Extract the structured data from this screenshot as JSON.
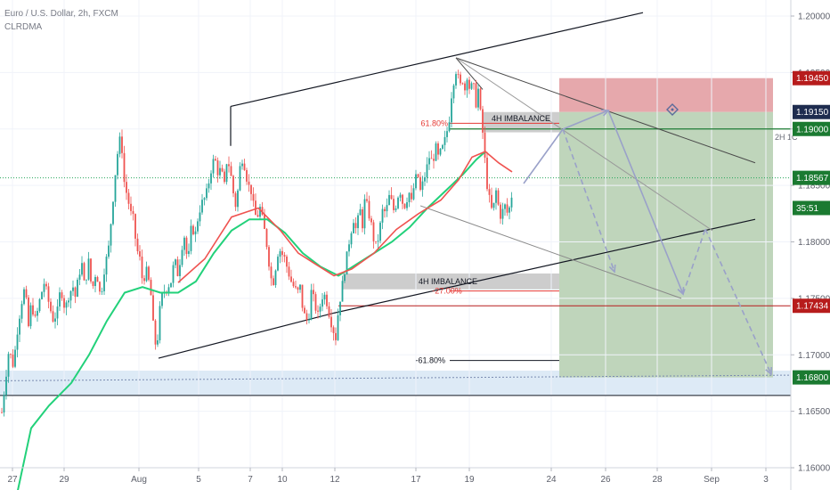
{
  "header": {
    "symbol": "Euro / U.S. Dollar, 2h, FXCM",
    "indicator": "CLRDMA"
  },
  "colors": {
    "up": "#26a69a",
    "down": "#ef5350",
    "ma_fast": "#ef5350",
    "ma_slow": "#22d17a",
    "green_tag": "#1b7a31",
    "red_tag": "#b71c1c",
    "navy_tag": "#1e2c4f",
    "stop_zone": "#e2999e",
    "target_zone": "#bcd3b7",
    "support_zone": "#cfe1f2",
    "projection": "#9aa1c9"
  },
  "chart_data": {
    "type": "candlestick",
    "price_axis": {
      "min": 1.16,
      "max": 1.2,
      "ticks": [
        "1.20000",
        "1.19500",
        "1.19000",
        "1.18500",
        "1.18000",
        "1.17500",
        "1.17000",
        "1.16500",
        "1.16000"
      ]
    },
    "time_axis": {
      "ticks": [
        "27",
        "29",
        "Aug",
        "5",
        "7",
        "10",
        "12",
        "17",
        "19",
        "24",
        "26",
        "28",
        "Sep",
        "3"
      ]
    },
    "candle_path": [
      [
        0,
        1.1635
      ],
      [
        5,
        1.167
      ],
      [
        10,
        1.1705
      ],
      [
        15,
        1.169
      ],
      [
        20,
        1.1725
      ],
      [
        25,
        1.175
      ],
      [
        28,
        1.176
      ],
      [
        32,
        1.1725
      ],
      [
        35,
        1.1745
      ],
      [
        40,
        1.173
      ],
      [
        45,
        1.175
      ],
      [
        50,
        1.1765
      ],
      [
        55,
        1.1745
      ],
      [
        60,
        1.173
      ],
      [
        65,
        1.174
      ],
      [
        68,
        1.176
      ],
      [
        73,
        1.174
      ],
      [
        78,
        1.1755
      ],
      [
        82,
        1.176
      ],
      [
        85,
        1.175
      ],
      [
        88,
        1.177
      ],
      [
        92,
        1.178
      ],
      [
        95,
        1.176
      ],
      [
        100,
        1.1785
      ],
      [
        103,
        1.1755
      ],
      [
        108,
        1.1775
      ],
      [
        113,
        1.175
      ],
      [
        117,
        1.1775
      ],
      [
        122,
        1.1795
      ],
      [
        126,
        1.183
      ],
      [
        130,
        1.1865
      ],
      [
        133,
        1.1885
      ],
      [
        136,
        1.1895
      ],
      [
        139,
        1.1855
      ],
      [
        143,
        1.184
      ],
      [
        147,
        1.1825
      ],
      [
        150,
        1.182
      ],
      [
        153,
        1.1795
      ],
      [
        157,
        1.1785
      ],
      [
        160,
        1.1765
      ],
      [
        165,
        1.1775
      ],
      [
        170,
        1.175
      ],
      [
        173,
        1.1715
      ],
      [
        176,
        1.1705
      ],
      [
        180,
        1.1745
      ],
      [
        183,
        1.1755
      ],
      [
        188,
        1.176
      ],
      [
        192,
        1.1765
      ],
      [
        196,
        1.1785
      ],
      [
        200,
        1.177
      ],
      [
        204,
        1.1795
      ],
      [
        207,
        1.1805
      ],
      [
        211,
        1.178
      ],
      [
        215,
        1.1815
      ],
      [
        219,
        1.1805
      ],
      [
        223,
        1.1825
      ],
      [
        227,
        1.1835
      ],
      [
        231,
        1.184
      ],
      [
        235,
        1.1855
      ],
      [
        238,
        1.1868
      ],
      [
        241,
        1.1875
      ],
      [
        245,
        1.186
      ],
      [
        248,
        1.1865
      ],
      [
        252,
        1.185
      ],
      [
        255,
        1.1875
      ],
      [
        258,
        1.1865
      ],
      [
        261,
        1.185
      ],
      [
        264,
        1.183
      ],
      [
        267,
        1.1845
      ],
      [
        270,
        1.187
      ],
      [
        273,
        1.1875
      ],
      [
        276,
        1.186
      ],
      [
        279,
        1.185
      ],
      [
        282,
        1.1845
      ],
      [
        285,
        1.183
      ],
      [
        288,
        1.182
      ],
      [
        292,
        1.183
      ],
      [
        296,
        1.1815
      ],
      [
        300,
        1.1795
      ],
      [
        303,
        1.1775
      ],
      [
        306,
        1.176
      ],
      [
        310,
        1.178
      ],
      [
        313,
        1.1795
      ],
      [
        316,
        1.179
      ],
      [
        320,
        1.1785
      ],
      [
        323,
        1.1775
      ],
      [
        327,
        1.1765
      ],
      [
        330,
        1.176
      ],
      [
        334,
        1.1755
      ],
      [
        337,
        1.176
      ],
      [
        340,
        1.174
      ],
      [
        344,
        1.173
      ],
      [
        347,
        1.1735
      ],
      [
        350,
        1.176
      ],
      [
        353,
        1.1745
      ],
      [
        357,
        1.1735
      ],
      [
        360,
        1.1745
      ],
      [
        363,
        1.1755
      ],
      [
        366,
        1.175
      ],
      [
        370,
        1.1735
      ],
      [
        373,
        1.1725
      ],
      [
        377,
        1.1715
      ],
      [
        380,
        1.174
      ],
      [
        383,
        1.1755
      ],
      [
        386,
        1.177
      ],
      [
        390,
        1.179
      ],
      [
        393,
        1.1805
      ],
      [
        397,
        1.182
      ],
      [
        400,
        1.181
      ],
      [
        404,
        1.183
      ],
      [
        407,
        1.1815
      ],
      [
        410,
        1.184
      ],
      [
        414,
        1.1825
      ],
      [
        417,
        1.1815
      ],
      [
        420,
        1.18
      ],
      [
        423,
        1.1795
      ],
      [
        427,
        1.1815
      ],
      [
        430,
        1.183
      ],
      [
        433,
        1.1825
      ],
      [
        437,
        1.184
      ],
      [
        440,
        1.1835
      ],
      [
        443,
        1.1825
      ],
      [
        446,
        1.184
      ],
      [
        450,
        1.1845
      ],
      [
        453,
        1.183
      ],
      [
        456,
        1.1835
      ],
      [
        459,
        1.1845
      ],
      [
        462,
        1.1835
      ],
      [
        466,
        1.1855
      ],
      [
        469,
        1.186
      ],
      [
        472,
        1.1845
      ],
      [
        476,
        1.1855
      ],
      [
        479,
        1.1865
      ],
      [
        482,
        1.1875
      ],
      [
        486,
        1.187
      ],
      [
        489,
        1.1885
      ],
      [
        492,
        1.1875
      ],
      [
        495,
        1.188
      ],
      [
        498,
        1.1885
      ],
      [
        501,
        1.1895
      ],
      [
        504,
        1.1905
      ],
      [
        507,
        1.193
      ],
      [
        510,
        1.1945
      ],
      [
        513,
        1.1955
      ],
      [
        516,
        1.1935
      ],
      [
        519,
        1.1945
      ],
      [
        522,
        1.1935
      ],
      [
        525,
        1.195
      ],
      [
        528,
        1.193
      ],
      [
        531,
        1.1945
      ],
      [
        534,
        1.192
      ],
      [
        537,
        1.1935
      ],
      [
        540,
        1.191
      ],
      [
        543,
        1.189
      ],
      [
        546,
        1.1855
      ],
      [
        549,
        1.184
      ],
      [
        553,
        1.1825
      ],
      [
        557,
        1.1845
      ],
      [
        560,
        1.183
      ],
      [
        563,
        1.182
      ],
      [
        566,
        1.1835
      ],
      [
        569,
        1.1825
      ],
      [
        572,
        1.183
      ],
      [
        575,
        1.1843
      ]
    ],
    "ma_fast": [
      [
        200,
        1.1764
      ],
      [
        230,
        1.1785
      ],
      [
        260,
        1.1822
      ],
      [
        290,
        1.183
      ],
      [
        315,
        1.181
      ],
      [
        335,
        1.179
      ],
      [
        355,
        1.178
      ],
      [
        375,
        1.177
      ],
      [
        395,
        1.1776
      ],
      [
        420,
        1.179
      ],
      [
        445,
        1.1811
      ],
      [
        470,
        1.1825
      ],
      [
        495,
        1.1837
      ],
      [
        515,
        1.1855
      ],
      [
        530,
        1.1875
      ],
      [
        545,
        1.188
      ],
      [
        560,
        1.187
      ],
      [
        575,
        1.1862
      ]
    ],
    "ma_slow": [
      [
        20,
        1.158
      ],
      [
        35,
        1.1635
      ],
      [
        55,
        1.1655
      ],
      [
        80,
        1.1675
      ],
      [
        100,
        1.17
      ],
      [
        120,
        1.173
      ],
      [
        140,
        1.1755
      ],
      [
        160,
        1.176
      ],
      [
        180,
        1.1755
      ],
      [
        200,
        1.1755
      ],
      [
        220,
        1.1765
      ],
      [
        240,
        1.179
      ],
      [
        260,
        1.181
      ],
      [
        280,
        1.182
      ],
      [
        300,
        1.182
      ],
      [
        320,
        1.1808
      ],
      [
        340,
        1.179
      ],
      [
        360,
        1.1778
      ],
      [
        380,
        1.177
      ],
      [
        400,
        1.178
      ],
      [
        420,
        1.179
      ],
      [
        440,
        1.18
      ],
      [
        460,
        1.1813
      ],
      [
        480,
        1.183
      ],
      [
        500,
        1.1845
      ],
      [
        520,
        1.186
      ],
      [
        535,
        1.1873
      ],
      [
        545,
        1.188
      ]
    ],
    "price_labels": [
      {
        "value": "1.19450",
        "price": 1.1945,
        "color": "red"
      },
      {
        "value": "1.19150",
        "price": 1.1915,
        "color": "navy"
      },
      {
        "value": "1.19000",
        "price": 1.19,
        "color": "green"
      },
      {
        "value": "1.18567",
        "price": 1.18567,
        "color": "green"
      },
      {
        "value": "35:51",
        "price": 1.183,
        "color": "green"
      },
      {
        "value": "1.17434",
        "price": 1.17434,
        "color": "red"
      },
      {
        "value": "1.16800",
        "price": 1.168,
        "color": "green"
      }
    ],
    "annotations": {
      "imbalance_upper": "4H IMBALANCE",
      "imbalance_lower": "4H IMBALANCE",
      "fib_upper": "61.80%",
      "fib_lower": "-27.00%",
      "fib_bottom": "-61.80%",
      "side_note": "2H 1C"
    }
  }
}
